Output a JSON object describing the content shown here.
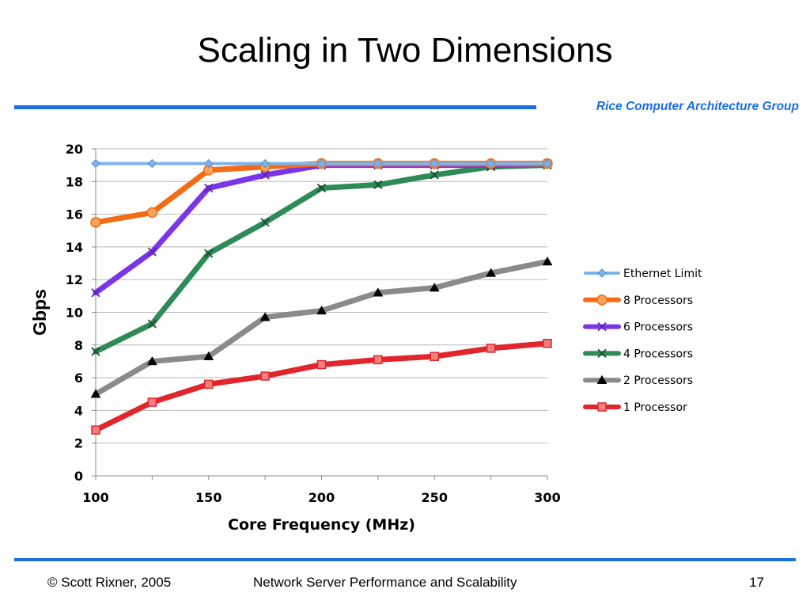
{
  "slide": {
    "title": "Scaling in Two Dimensions",
    "group_label": "Rice Computer Architecture Group",
    "footer_left": "© Scott Rixner, 2005",
    "footer_center": "Network Server Performance and Scalability",
    "page_number": "17"
  },
  "colors": {
    "accent_rule": "#1a6fe0",
    "grid": "#b8b8b8"
  },
  "chart_data": {
    "type": "line",
    "title": "",
    "xlabel": "Core Frequency (MHz)",
    "ylabel": "Gbps",
    "xlim": [
      100,
      300
    ],
    "ylim": [
      0,
      20
    ],
    "x_ticks": [
      100,
      150,
      200,
      250,
      300
    ],
    "y_ticks": [
      0,
      2,
      4,
      6,
      8,
      10,
      12,
      14,
      16,
      18,
      20
    ],
    "grid": true,
    "legend": "right",
    "x": [
      100,
      125,
      150,
      175,
      200,
      225,
      250,
      275,
      300
    ],
    "series": [
      {
        "name": "Ethernet Limit",
        "color": "#7fb4ea",
        "marker": "diamond",
        "values": [
          19.1,
          19.1,
          19.1,
          19.1,
          19.1,
          19.1,
          19.1,
          19.1,
          19.1
        ]
      },
      {
        "name": "8 Processors",
        "color": "#f26c15",
        "marker": "circle",
        "values": [
          15.5,
          16.1,
          18.7,
          18.9,
          19.1,
          19.1,
          19.1,
          19.1,
          19.1
        ]
      },
      {
        "name": "6 Processors",
        "color": "#7b35e8",
        "marker": "x",
        "values": [
          11.2,
          13.7,
          17.6,
          18.4,
          19.0,
          19.0,
          19.0,
          19.0,
          19.1
        ]
      },
      {
        "name": "4 Processors",
        "color": "#2e8b57",
        "marker": "x",
        "values": [
          7.6,
          9.3,
          13.6,
          15.5,
          17.6,
          17.8,
          18.4,
          18.9,
          19.0
        ]
      },
      {
        "name": "2 Processors",
        "color": "#8a8a8a",
        "marker": "triangle",
        "values": [
          5.0,
          7.0,
          7.3,
          9.7,
          10.1,
          11.2,
          11.5,
          12.4,
          13.1
        ]
      },
      {
        "name": "1 Processor",
        "color": "#e0262c",
        "marker": "square",
        "values": [
          2.8,
          4.5,
          5.6,
          6.1,
          6.8,
          7.1,
          7.3,
          7.8,
          8.1
        ]
      }
    ]
  }
}
